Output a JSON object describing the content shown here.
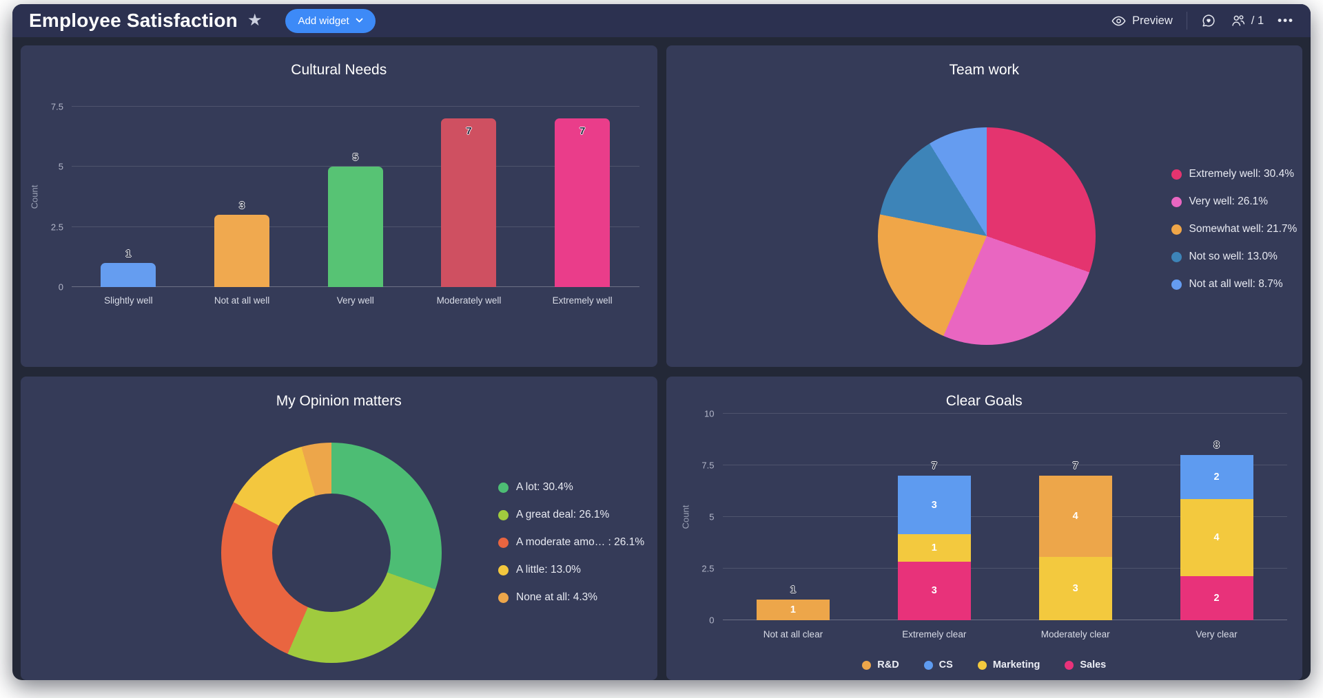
{
  "header": {
    "title": "Employee Satisfaction",
    "add_widget_label": "Add widget",
    "preview_label": "Preview",
    "seats_label": "/ 1",
    "accent_color": "#3d8af7"
  },
  "chart_data": [
    {
      "id": "cultural_needs",
      "type": "bar",
      "title": "Cultural Needs",
      "ylabel": "Count",
      "ylim": [
        0,
        7.5
      ],
      "yticks": [
        0,
        2.5,
        5,
        7.5
      ],
      "categories": [
        "Slightly well",
        "Not at all well",
        "Very well",
        "Moderately well",
        "Extremely well"
      ],
      "values": [
        1,
        3,
        5,
        7,
        7
      ],
      "bar_colors": [
        "#659df0",
        "#f0a94f",
        "#57c374",
        "#cf5061",
        "#ea3d8a"
      ],
      "grid": true,
      "legend_position": "none"
    },
    {
      "id": "team_work",
      "type": "pie",
      "title": "Team work",
      "legend_position": "right",
      "slices": [
        {
          "label": "Extremely well",
          "pct": 30.4,
          "color": "#e4346f",
          "text": "Extremely well: 30.4%"
        },
        {
          "label": "Very well",
          "pct": 26.1,
          "color": "#e966c1",
          "text": "Very well: 26.1%"
        },
        {
          "label": "Somewhat well",
          "pct": 21.7,
          "color": "#f0a648",
          "text": "Somewhat well: 21.7%"
        },
        {
          "label": "Not so well",
          "pct": 13.0,
          "color": "#3d84b8",
          "text": "Not so well: 13.0%"
        },
        {
          "label": "Not at all well",
          "pct": 8.7,
          "color": "#659cf0",
          "text": "Not at all well: 8.7%"
        }
      ]
    },
    {
      "id": "my_opinion_matters",
      "type": "donut",
      "title": "My Opinion matters",
      "legend_position": "right",
      "slices": [
        {
          "label": "A lot",
          "pct": 30.4,
          "color": "#4dbd74",
          "text": "A lot: 30.4%"
        },
        {
          "label": "A great deal",
          "pct": 26.1,
          "color": "#a0cb3e",
          "text": "A great deal: 26.1%"
        },
        {
          "label": "A moderate amo…",
          "pct": 26.1,
          "color": "#e96540",
          "text": "A moderate amo… : 26.1%"
        },
        {
          "label": "A little",
          "pct": 13.0,
          "color": "#f3c73e",
          "text": "A little: 13.0%"
        },
        {
          "label": "None at all",
          "pct": 4.3,
          "color": "#eda64a",
          "text": "None at all: 4.3%"
        }
      ]
    },
    {
      "id": "clear_goals",
      "type": "stacked_bar",
      "title": "Clear Goals",
      "ylabel": "Count",
      "ylim": [
        0,
        10
      ],
      "yticks": [
        0,
        2.5,
        5,
        7.5,
        10
      ],
      "categories": [
        "Not at all clear",
        "Extremely clear",
        "Moderately clear",
        "Very clear"
      ],
      "series": [
        {
          "name": "R&D",
          "color": "#eda64a",
          "values": [
            1,
            0,
            4,
            0
          ]
        },
        {
          "name": "CS",
          "color": "#5e9bf0",
          "values": [
            0,
            3,
            0,
            2
          ]
        },
        {
          "name": "Marketing",
          "color": "#f3c93e",
          "values": [
            0,
            1,
            3,
            4
          ]
        },
        {
          "name": "Sales",
          "color": "#e8327a",
          "values": [
            0,
            3,
            0,
            2
          ]
        }
      ],
      "stack_order": [
        "Sales",
        "Marketing",
        "R&D",
        "CS"
      ],
      "totals": [
        1,
        7,
        7,
        8
      ],
      "grid": true,
      "legend_position": "bottom"
    }
  ]
}
